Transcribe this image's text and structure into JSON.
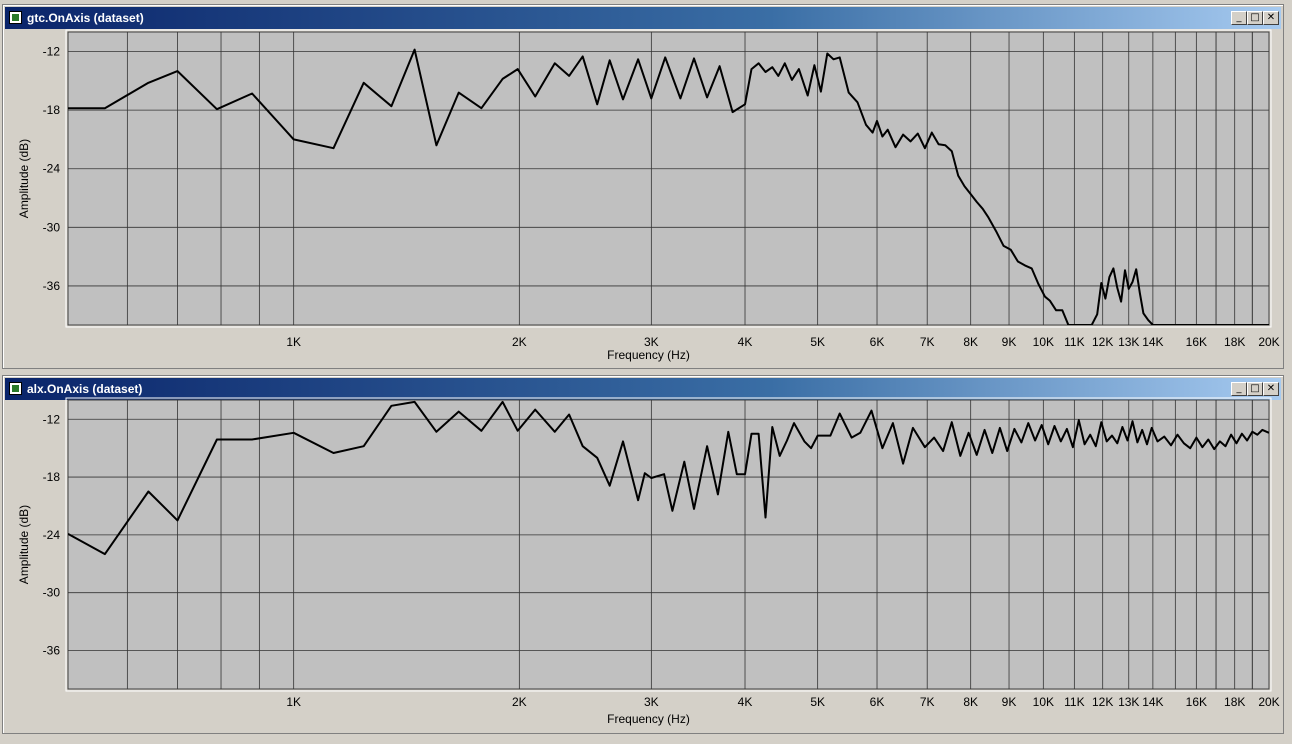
{
  "windows": [
    {
      "title": "gtc.OnAxis (dataset)",
      "controls": {
        "minimize_icon": "minimize-icon",
        "maximize_icon": "maximize-icon",
        "close_icon": "close-icon"
      },
      "chart_data": {
        "type": "line",
        "xscale": "log",
        "xlabel": "Frequency (Hz)",
        "ylabel": "Amplitude (dB)",
        "xlim": [
          500,
          20000
        ],
        "ylim": [
          -40,
          -10
        ],
        "yticks": [
          -12,
          -18,
          -24,
          -30,
          -36
        ],
        "xticks": [
          1000,
          2000,
          3000,
          4000,
          5000,
          6000,
          7000,
          8000,
          9000,
          10000,
          11000,
          12000,
          13000,
          14000,
          16000,
          18000,
          20000
        ],
        "xtick_labels": [
          "1K",
          "2K",
          "3K",
          "4K",
          "5K",
          "6K",
          "7K",
          "8K",
          "9K",
          "10K",
          "11K",
          "12K",
          "13K",
          "14K",
          "16K",
          "18K",
          "20K"
        ],
        "grid": true,
        "line_color": "#000000",
        "plot_bg": "#c0c0c0",
        "series": [
          {
            "x": [
              500,
              560,
              640,
              700,
              790,
              880,
              1000,
              1130,
              1240,
              1350,
              1450,
              1550,
              1660,
              1780,
              1900,
              1990,
              2100,
              2230,
              2330,
              2430,
              2540,
              2640,
              2750,
              2880,
              3000,
              3130,
              3280,
              3420,
              3560,
              3700,
              3850,
              4000,
              4080,
              4170,
              4260,
              4350,
              4430,
              4520,
              4620,
              4720,
              4850,
              4950,
              5050,
              5150,
              5250,
              5350,
              5500,
              5650,
              5800,
              5920,
              6000,
              6100,
              6200,
              6350,
              6500,
              6650,
              6800,
              6950,
              7100,
              7250,
              7400,
              7550,
              7700,
              7850,
              8000,
              8150,
              8300,
              8450,
              8650,
              8850,
              9050,
              9250,
              9450,
              9650,
              9850,
              10050,
              10200,
              10400,
              10600,
              10800,
              11000,
              11300,
              11600,
              11800,
              11950,
              12100,
              12250,
              12400,
              12550,
              12700,
              12850,
              13000,
              13150,
              13300,
              13450,
              13600,
              13800,
              14000,
              16000,
              18000,
              20000
            ],
            "y": [
              -17.8,
              -17.8,
              -15.2,
              -14,
              -17.9,
              -16.3,
              -21,
              -21.9,
              -15.2,
              -17.6,
              -11.8,
              -21.6,
              -16.2,
              -17.8,
              -14.8,
              -13.8,
              -16.6,
              -13.2,
              -14.5,
              -12.5,
              -17.4,
              -12.9,
              -16.9,
              -12.8,
              -16.8,
              -12.6,
              -16.8,
              -12.7,
              -16.7,
              -13.5,
              -18.2,
              -17.4,
              -13.8,
              -13.2,
              -14.1,
              -13.6,
              -14.5,
              -13.2,
              -14.9,
              -13.8,
              -16.5,
              -13.4,
              -16.1,
              -12.2,
              -12.8,
              -12.6,
              -16.2,
              -17.2,
              -19.5,
              -20.3,
              -19.1,
              -20.7,
              -20,
              -21.8,
              -20.5,
              -21.2,
              -20.4,
              -21.9,
              -20.3,
              -21.5,
              -21.6,
              -22.2,
              -24.7,
              -25.8,
              -26.6,
              -27.4,
              -28.1,
              -29,
              -30.4,
              -31.9,
              -32.3,
              -33.5,
              -33.9,
              -34.2,
              -35.8,
              -37.1,
              -37.5,
              -38.5,
              -38.5,
              -40.2,
              -40.2,
              -40,
              -40,
              -38.9,
              -35.7,
              -37.3,
              -35.1,
              -34.2,
              -36.2,
              -37.6,
              -34.4,
              -36.3,
              -35.6,
              -34.3,
              -36.7,
              -38.8,
              -39.5,
              -40,
              -40,
              -40,
              -40
            ]
          }
        ]
      }
    },
    {
      "title": "alx.OnAxis (dataset)",
      "controls": {
        "minimize_icon": "minimize-icon",
        "maximize_icon": "maximize-icon",
        "close_icon": "close-icon"
      },
      "chart_data": {
        "type": "line",
        "xscale": "log",
        "xlabel": "Frequency (Hz)",
        "ylabel": "Amplitude (dB)",
        "xlim": [
          500,
          20000
        ],
        "ylim": [
          -40,
          -10
        ],
        "yticks": [
          -12,
          -18,
          -24,
          -30,
          -36
        ],
        "xticks": [
          1000,
          2000,
          3000,
          4000,
          5000,
          6000,
          7000,
          8000,
          9000,
          10000,
          11000,
          12000,
          13000,
          14000,
          16000,
          18000,
          20000
        ],
        "xtick_labels": [
          "1K",
          "2K",
          "3K",
          "4K",
          "5K",
          "6K",
          "7K",
          "8K",
          "9K",
          "10K",
          "11K",
          "12K",
          "13K",
          "14K",
          "16K",
          "18K",
          "20K"
        ],
        "grid": true,
        "line_color": "#000000",
        "plot_bg": "#c0c0c0",
        "series": [
          {
            "x": [
              500,
              560,
              640,
              700,
              790,
              880,
              1000,
              1130,
              1240,
              1350,
              1450,
              1550,
              1660,
              1780,
              1900,
              1990,
              2100,
              2230,
              2330,
              2430,
              2540,
              2640,
              2750,
              2880,
              2940,
              3000,
              3120,
              3200,
              3320,
              3420,
              3560,
              3680,
              3800,
              3900,
              4000,
              4080,
              4170,
              4260,
              4350,
              4450,
              4550,
              4650,
              4800,
              4900,
              5000,
              5200,
              5350,
              5550,
              5700,
              5900,
              6100,
              6300,
              6500,
              6700,
              6950,
              7150,
              7350,
              7550,
              7750,
              7950,
              8150,
              8350,
              8550,
              8750,
              8950,
              9150,
              9350,
              9550,
              9750,
              9950,
              10150,
              10350,
              10550,
              10750,
              10950,
              11150,
              11350,
              11550,
              11750,
              11950,
              12150,
              12350,
              12550,
              12750,
              12950,
              13150,
              13350,
              13550,
              13750,
              13950,
              14200,
              14500,
              14800,
              15100,
              15400,
              15700,
              16000,
              16300,
              16600,
              16900,
              17200,
              17500,
              17800,
              18100,
              18400,
              18700,
              19000,
              19300,
              19600,
              20000
            ],
            "y": [
              -23.9,
              -26,
              -19.5,
              -22.5,
              -14.1,
              -14.1,
              -13.4,
              -15.5,
              -14.8,
              -10.6,
              -10.2,
              -13.3,
              -11.2,
              -13.2,
              -10.2,
              -13.2,
              -11,
              -13.3,
              -11.5,
              -14.8,
              -16,
              -18.9,
              -14.3,
              -20.4,
              -17.6,
              -18.1,
              -17.7,
              -21.5,
              -16.4,
              -21.3,
              -14.8,
              -19.8,
              -13.3,
              -17.7,
              -17.7,
              -13.5,
              -13.5,
              -22.2,
              -12.8,
              -15.8,
              -14.2,
              -12.4,
              -14.3,
              -15,
              -13.7,
              -13.7,
              -11.4,
              -13.9,
              -13.4,
              -11.1,
              -15,
              -12.4,
              -16.6,
              -12.9,
              -14.9,
              -13.9,
              -15.3,
              -12.3,
              -15.8,
              -13.4,
              -15.7,
              -13.1,
              -15.5,
              -12.9,
              -15.3,
              -13,
              -14.4,
              -12.4,
              -14.2,
              -12.6,
              -14.6,
              -12.7,
              -14.3,
              -13,
              -14.9,
              -12.1,
              -14.6,
              -13.6,
              -14.8,
              -12.3,
              -14.3,
              -13.7,
              -14.5,
              -12.8,
              -14.2,
              -12.2,
              -14.4,
              -13.1,
              -14.6,
              -12.9,
              -14.3,
              -13.8,
              -14.7,
              -13.6,
              -14.5,
              -15,
              -13.9,
              -14.9,
              -14.1,
              -15.1,
              -14.3,
              -14.8,
              -13.6,
              -14.5,
              -13.5,
              -14.2,
              -13.3,
              -13.6,
              -13.1,
              -13.4
            ]
          }
        ]
      }
    }
  ]
}
